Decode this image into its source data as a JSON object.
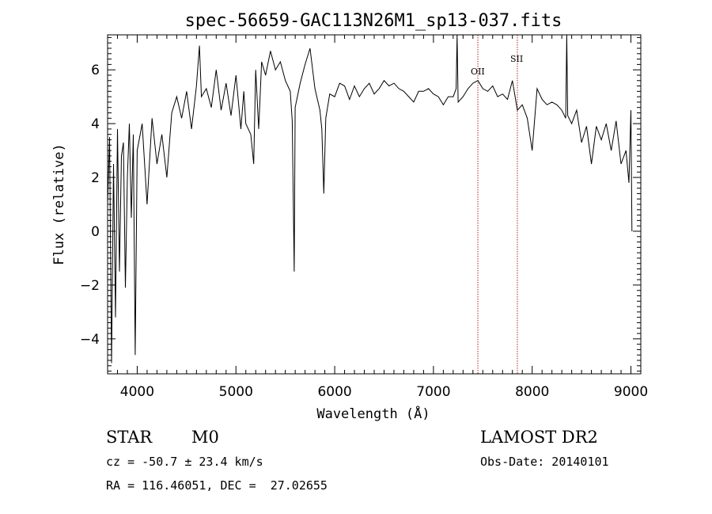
{
  "chart_data": {
    "type": "line",
    "title": "spec-56659-GAC113N26M1_sp13-037.fits",
    "xlabel": "Wavelength (Å)",
    "ylabel": "Flux (relative)",
    "xlim": [
      3700,
      9100
    ],
    "ylim": [
      -5.3,
      7.3
    ],
    "xticks": [
      4000,
      5000,
      6000,
      7000,
      8000,
      9000
    ],
    "yticks": [
      -4,
      -2,
      0,
      2,
      4,
      6
    ],
    "grid": false,
    "series": [
      {
        "x": [
          3700,
          3720,
          3740,
          3760,
          3780,
          3800,
          3820,
          3840,
          3860,
          3880,
          3900,
          3920,
          3940,
          3960,
          3980,
          4000,
          4050,
          4100,
          4150,
          4200,
          4250,
          4300,
          4350,
          4400,
          4450,
          4500,
          4550,
          4600,
          4630,
          4650,
          4700,
          4750,
          4800,
          4850,
          4900,
          4950,
          5000,
          5050,
          5080,
          5100,
          5150,
          5180,
          5200,
          5230,
          5260,
          5300,
          5350,
          5400,
          5450,
          5500,
          5550,
          5570,
          5590,
          5600,
          5650,
          5700,
          5750,
          5800,
          5850,
          5870,
          5890,
          5910,
          5950,
          6000,
          6050,
          6100,
          6150,
          6200,
          6250,
          6300,
          6350,
          6400,
          6450,
          6500,
          6550,
          6600,
          6650,
          6700,
          6750,
          6800,
          6850,
          6900,
          6950,
          7000,
          7050,
          7100,
          7150,
          7200,
          7230,
          7240,
          7250,
          7300,
          7350,
          7400,
          7450,
          7500,
          7550,
          7600,
          7650,
          7700,
          7750,
          7800,
          7850,
          7900,
          7950,
          8000,
          8050,
          8100,
          8150,
          8200,
          8250,
          8300,
          8340,
          8350,
          8360,
          8400,
          8450,
          8500,
          8550,
          8600,
          8650,
          8700,
          8750,
          8800,
          8850,
          8900,
          8950,
          8980,
          9000,
          9010
        ],
        "y": [
          1.0,
          3.5,
          -4.9,
          2.5,
          -3.2,
          3.8,
          -1.5,
          2.8,
          3.3,
          -2.1,
          2.0,
          4.0,
          0.5,
          3.6,
          -4.6,
          3.0,
          4.0,
          1.0,
          4.2,
          2.5,
          3.6,
          2.0,
          4.4,
          5.0,
          4.2,
          5.2,
          3.8,
          5.4,
          6.9,
          5.0,
          5.3,
          4.6,
          6.0,
          4.5,
          5.5,
          4.3,
          5.8,
          3.8,
          5.2,
          4.0,
          3.6,
          2.5,
          6.0,
          3.8,
          6.3,
          5.8,
          6.7,
          6.0,
          6.3,
          5.6,
          5.2,
          4.1,
          -1.5,
          4.6,
          5.5,
          6.2,
          6.8,
          5.3,
          4.5,
          3.8,
          1.4,
          4.2,
          5.1,
          5.0,
          5.5,
          5.4,
          4.9,
          5.4,
          5.0,
          5.3,
          5.5,
          5.1,
          5.3,
          5.6,
          5.4,
          5.5,
          5.3,
          5.2,
          5.0,
          4.8,
          5.2,
          5.2,
          5.3,
          5.1,
          5.0,
          4.7,
          5.0,
          5.0,
          5.3,
          7.3,
          4.8,
          5.0,
          5.3,
          5.5,
          5.6,
          5.3,
          5.2,
          5.4,
          5.0,
          5.1,
          4.9,
          5.6,
          4.5,
          4.7,
          4.2,
          3.0,
          5.3,
          4.9,
          4.7,
          4.8,
          4.7,
          4.5,
          4.2,
          7.3,
          4.3,
          4.0,
          4.5,
          3.3,
          3.9,
          2.5,
          3.9,
          3.4,
          4.0,
          3.0,
          4.1,
          2.5,
          3.0,
          1.8,
          4.5,
          0.0
        ]
      }
    ],
    "annotations": [
      {
        "label": "OII",
        "x": 7450
      },
      {
        "label": "SII",
        "x": 7850
      }
    ]
  },
  "info": {
    "obj_class": "STAR",
    "subclass": "M0",
    "survey": "LAMOST DR2",
    "cz": "cz = -50.7 ± 23.4 km/s",
    "obs_date": "Obs-Date: 20140101",
    "coords": "RA = 116.46051, DEC =  27.02655"
  },
  "colors": {
    "spectrum": "#000000",
    "marker_lines": "#b22222"
  }
}
